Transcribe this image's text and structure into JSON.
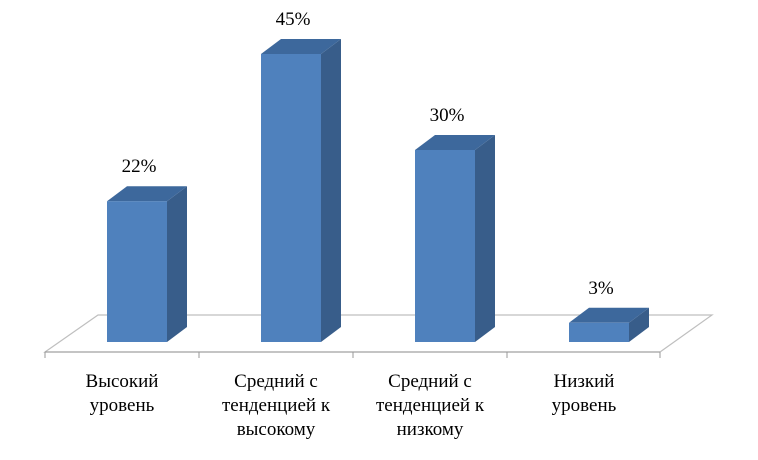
{
  "chart_data": {
    "type": "bar",
    "style": "3d-column",
    "categories": [
      [
        "Высокий",
        "уровень"
      ],
      [
        "Средний с",
        "тенденцией к",
        "высокому"
      ],
      [
        "Средний с",
        "тенденцией к",
        "низкому"
      ],
      [
        "Низкий",
        "уровень"
      ]
    ],
    "values": [
      22,
      45,
      30,
      3
    ],
    "value_labels": [
      "22%",
      "45%",
      "30%",
      "3%"
    ],
    "unit": "%",
    "title": "",
    "xlabel": "",
    "ylabel": "",
    "ylim": [
      0,
      50
    ],
    "grid": false,
    "legend": "none",
    "colors": {
      "bar_front": "#4f81bd",
      "bar_side": "#385d8a",
      "bar_top": "#3d689c",
      "floor_line": "#bfbfbf",
      "axis": "#999999",
      "text": "#000000"
    }
  }
}
